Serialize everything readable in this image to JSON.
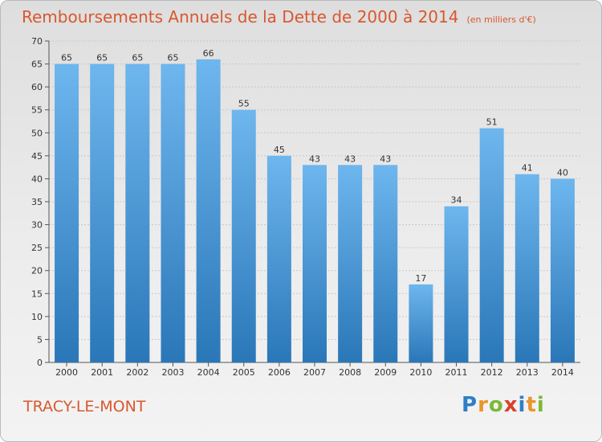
{
  "header": {
    "title": "Remboursements Annuels de la Dette de 2000 à 2014",
    "subtitle": "(en milliers d'€)"
  },
  "footer": {
    "commune": "TRACY-LE-MONT"
  },
  "logo": {
    "letters": [
      "P",
      "r",
      "o",
      "x",
      "i",
      "t",
      "i"
    ],
    "colors": [
      "#2f7fc6",
      "#e8962a",
      "#7cb937",
      "#d8422f",
      "#2f7fc6",
      "#e8962a",
      "#7cb937"
    ]
  },
  "colors": {
    "bar_light": "#6eb6ee",
    "bar_dark": "#2a77b8",
    "title": "#d8582f"
  },
  "chart_data": {
    "type": "bar",
    "categories": [
      "2000",
      "2001",
      "2002",
      "2003",
      "2004",
      "2005",
      "2006",
      "2007",
      "2008",
      "2009",
      "2010",
      "2011",
      "2012",
      "2013",
      "2014"
    ],
    "values": [
      65,
      65,
      65,
      65,
      66,
      55,
      45,
      43,
      43,
      43,
      17,
      34,
      51,
      41,
      40
    ],
    "title": "Remboursements Annuels de la Dette de 2000 à 2014",
    "subtitle": "(en milliers d'€)",
    "ylim": [
      0,
      70
    ],
    "yticks": [
      0,
      5,
      10,
      15,
      20,
      25,
      30,
      35,
      40,
      45,
      50,
      55,
      60,
      65,
      70
    ],
    "grid": true,
    "legend": "none"
  }
}
